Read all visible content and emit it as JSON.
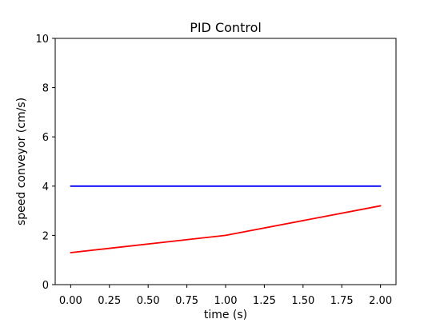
{
  "chart_data": {
    "type": "line",
    "title": "PID Control",
    "xlabel": "time (s)",
    "ylabel": "speed conveyor (cm/s)",
    "xlim": [
      -0.1,
      2.1
    ],
    "ylim": [
      0,
      10
    ],
    "xticks": [
      "0.00",
      "0.25",
      "0.50",
      "0.75",
      "1.00",
      "1.25",
      "1.50",
      "1.75",
      "2.00"
    ],
    "yticks": [
      "0",
      "2",
      "4",
      "6",
      "8",
      "10"
    ],
    "grid": false,
    "series": [
      {
        "color": "#0000ff",
        "x": [
          0,
          1,
          2
        ],
        "values": [
          4,
          4,
          4
        ]
      },
      {
        "color": "#ff0000",
        "x": [
          0,
          1,
          2
        ],
        "values": [
          1.3,
          2.0,
          3.2
        ]
      }
    ]
  }
}
